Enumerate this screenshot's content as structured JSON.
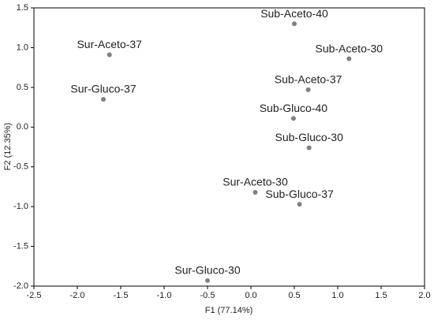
{
  "chart_data": {
    "type": "scatter",
    "xlabel": "F1 (77.14%)",
    "ylabel": "F2 (12.35%)",
    "point_labels": [
      "Sub-Aceto-40",
      "Sub-Aceto-30",
      "Sur-Aceto-37",
      "Sur-Gluco-37",
      "Sub-Aceto-37",
      "Sub-Gluco-40",
      "Sub-Gluco-30",
      "Sur-Aceto-30",
      "Sub-Gluco-37",
      "Sur-Gluco-30"
    ],
    "x": [
      0.5,
      1.13,
      -1.63,
      -1.7,
      0.66,
      0.49,
      0.67,
      0.05,
      0.56,
      -0.5
    ],
    "values": [
      1.3,
      0.86,
      0.91,
      0.35,
      0.47,
      0.11,
      -0.26,
      -0.82,
      -0.97,
      -1.93
    ],
    "color": "#808080",
    "xlim": [
      -2.5,
      2.0
    ],
    "xticks": [
      -2.5,
      {
        "value": -2,
        "label": "-2.0"
      },
      -1.5,
      {
        "value": -1,
        "label": "-1.0"
      },
      -0.5,
      {
        "value": 0,
        "label": "0.0"
      },
      0.5,
      {
        "value": 1,
        "label": "1.0"
      },
      1.5,
      {
        "value": 2,
        "label": "2.0"
      }
    ],
    "ylim": [
      -2.0,
      1.5
    ],
    "yticks": [
      {
        "value": -2,
        "label": "-2.0"
      },
      -1.5,
      {
        "value": -1,
        "label": "-1.0"
      },
      -0.5,
      {
        "value": 0,
        "label": "0.0"
      },
      0.5,
      {
        "value": 1,
        "label": "1.0"
      },
      1.5
    ],
    "grid": false
  }
}
